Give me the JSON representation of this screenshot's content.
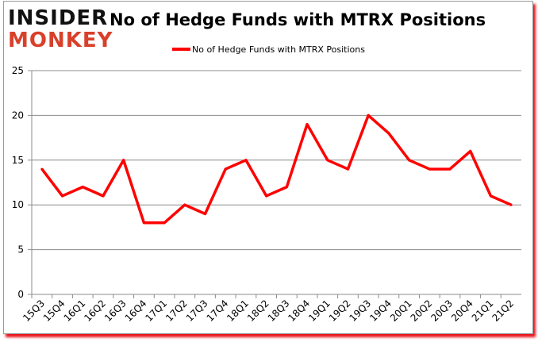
{
  "logo": {
    "line1": "INSIDER",
    "line2": "MONKEY"
  },
  "chart_data": {
    "type": "line",
    "title": "No of Hedge Funds with MTRX Positions",
    "categories": [
      "15Q3",
      "15Q4",
      "16Q1",
      "16Q2",
      "16Q3",
      "16Q4",
      "17Q1",
      "17Q2",
      "17Q3",
      "17Q4",
      "18Q1",
      "18Q2",
      "18Q3",
      "18Q4",
      "19Q1",
      "19Q2",
      "19Q3",
      "19Q4",
      "20Q1",
      "20Q2",
      "20Q3",
      "20Q4",
      "21Q1",
      "21Q2"
    ],
    "series": [
      {
        "name": "No of Hedge Funds with MTRX Positions",
        "color": "#ff0000",
        "values": [
          14,
          11,
          12,
          11,
          15,
          8,
          8,
          10,
          9,
          14,
          15,
          11,
          12,
          19,
          15,
          14,
          20,
          18,
          15,
          14,
          14,
          16,
          11,
          10
        ]
      }
    ],
    "ylim": [
      0,
      25
    ],
    "yticks": [
      0,
      5,
      10,
      15,
      20,
      25
    ],
    "grid": true,
    "legend": "top-center"
  }
}
